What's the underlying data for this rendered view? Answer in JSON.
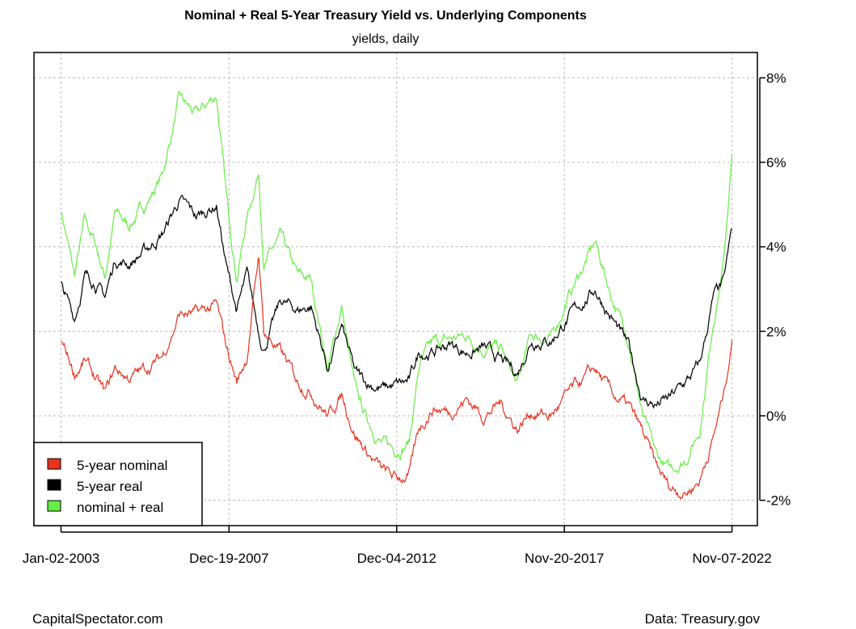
{
  "chart_data": {
    "type": "line",
    "title": "Nominal + Real 5-Year Treasury Yield vs. Underlying Components",
    "subtitle": "yields, daily",
    "xlabel": "",
    "ylabel": "",
    "x_tick_labels": [
      "Jan-02-2003",
      "Dec-19-2007",
      "Dec-04-2012",
      "Nov-20-2017",
      "Nov-07-2022"
    ],
    "x_tick_years": [
      2003.0,
      2007.97,
      2012.93,
      2017.89,
      2022.85
    ],
    "y_ticks": [
      8,
      6,
      4,
      2,
      0,
      -2
    ],
    "y_tick_labels": [
      "8%",
      "6%",
      "4%",
      "2%",
      "0%",
      "-2%"
    ],
    "ylim": [
      -2.6,
      8.6
    ],
    "xlim": [
      2002.2,
      2023.6
    ],
    "grid": true,
    "legend_position": "bottom-left",
    "x": [
      2003.0,
      2003.4,
      2003.7,
      2004.0,
      2004.3,
      2004.6,
      2005.0,
      2005.5,
      2006.0,
      2006.5,
      2007.0,
      2007.6,
      2007.9,
      2008.2,
      2008.5,
      2008.85,
      2009.0,
      2009.5,
      2010.0,
      2010.4,
      2010.9,
      2011.3,
      2011.7,
      2012.0,
      2012.5,
      2012.9,
      2013.3,
      2013.6,
      2014.0,
      2014.5,
      2015.0,
      2015.5,
      2016.0,
      2016.5,
      2016.9,
      2017.5,
      2018.0,
      2018.8,
      2019.3,
      2019.8,
      2020.2,
      2020.6,
      2021.0,
      2021.5,
      2021.9,
      2022.3,
      2022.6,
      2022.85
    ],
    "series": [
      {
        "name": "nominal + real",
        "color": "#66ee44",
        "values": [
          4.9,
          3.3,
          4.6,
          4.1,
          3.3,
          4.8,
          4.5,
          5.0,
          5.7,
          7.5,
          7.1,
          7.6,
          5.1,
          3.3,
          4.7,
          5.8,
          3.6,
          4.2,
          3.3,
          3.2,
          1.1,
          2.6,
          0.6,
          0.0,
          -0.65,
          -0.8,
          -0.6,
          1.2,
          1.7,
          1.8,
          1.9,
          1.6,
          1.6,
          0.7,
          1.9,
          1.8,
          2.8,
          4.1,
          2.8,
          1.8,
          0.0,
          -0.95,
          -1.3,
          -1.0,
          -0.3,
          2.3,
          3.6,
          6.2
        ]
      },
      {
        "name": "5-year real",
        "color": "#000000",
        "values": [
          3.1,
          2.3,
          3.3,
          3.2,
          2.8,
          3.7,
          3.6,
          3.9,
          4.3,
          5.1,
          4.7,
          5.0,
          3.5,
          2.5,
          3.3,
          2.0,
          1.6,
          2.7,
          2.5,
          2.6,
          1.1,
          2.1,
          1.0,
          0.8,
          0.65,
          0.7,
          0.8,
          1.5,
          1.5,
          1.7,
          1.5,
          1.6,
          1.3,
          1.0,
          1.8,
          1.8,
          2.3,
          3.0,
          2.3,
          1.6,
          0.4,
          0.25,
          0.4,
          0.8,
          1.2,
          2.8,
          3.1,
          4.4
        ]
      },
      {
        "name": "5-year nominal",
        "color": "#e8321e",
        "values": [
          1.8,
          1.0,
          1.3,
          0.9,
          0.5,
          1.1,
          0.9,
          1.1,
          1.4,
          2.4,
          2.4,
          2.6,
          1.6,
          0.8,
          1.4,
          3.8,
          2.0,
          1.5,
          0.8,
          0.6,
          0.0,
          0.5,
          -0.4,
          -0.8,
          -1.3,
          -1.5,
          -1.4,
          -0.3,
          0.2,
          0.1,
          0.4,
          0.0,
          0.3,
          -0.3,
          0.1,
          0.0,
          0.5,
          1.1,
          0.5,
          0.2,
          -0.4,
          -1.2,
          -1.7,
          -1.8,
          -1.5,
          -0.5,
          0.5,
          1.8
        ]
      }
    ],
    "legend": [
      {
        "label": "5-year nominal",
        "color": "#e8321e"
      },
      {
        "label": "5-year real",
        "color": "#000000"
      },
      {
        "label": "nominal + real",
        "color": "#66ee44"
      }
    ]
  },
  "footer": {
    "left": "CapitalSpectator.com",
    "right": "Data: Treasury.gov"
  }
}
